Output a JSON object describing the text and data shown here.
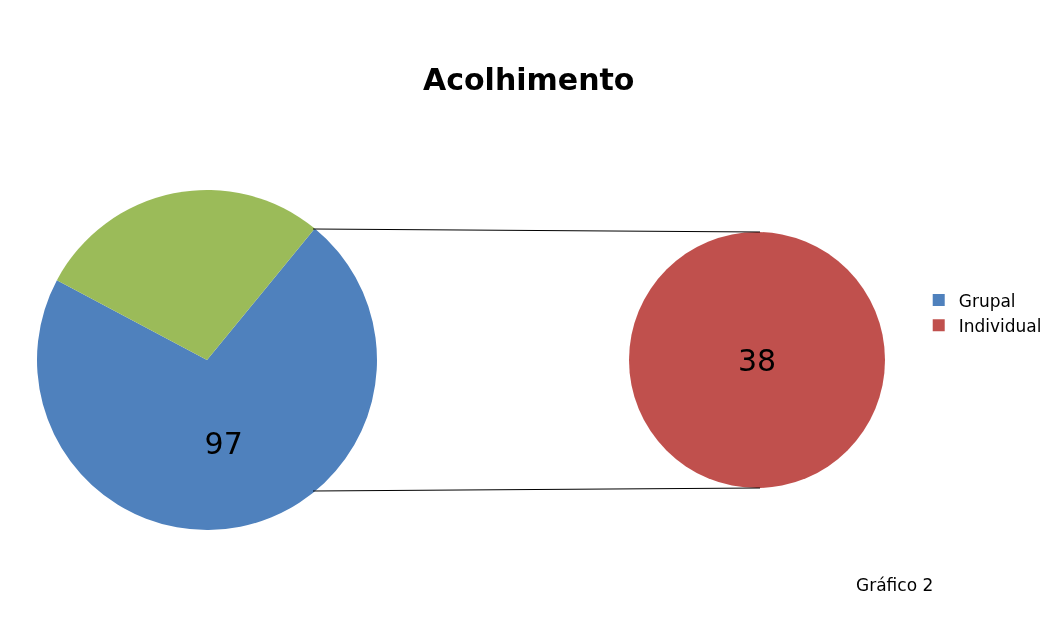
{
  "chart_data": [
    {
      "type": "pie",
      "title": "Acolhimento",
      "categories": [
        "Grupal",
        null
      ],
      "values": [
        97,
        38
      ],
      "colors": [
        "#4f81bd",
        "#9bbb59"
      ],
      "value_labels": [
        "97",
        null
      ],
      "legend": "right"
    },
    {
      "type": "pie",
      "categories": [
        "Individual"
      ],
      "values": [
        38
      ],
      "colors": [
        "#c0504d"
      ],
      "value_labels": [
        "38"
      ],
      "legend": "right",
      "annotations": [
        "Gráfico 2"
      ]
    }
  ]
}
